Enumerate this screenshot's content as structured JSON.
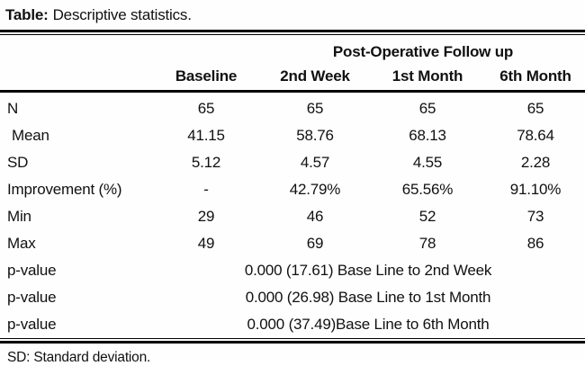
{
  "title": {
    "prefix": "Table:",
    "text": "Descriptive statistics."
  },
  "table": {
    "group_header": "Post-Operative Follow up",
    "columns": [
      "Baseline",
      "2nd Week",
      "1st Month",
      "6th Month"
    ],
    "rows": [
      {
        "label": "N",
        "values": [
          "65",
          "65",
          "65",
          "65"
        ]
      },
      {
        "label": "Mean",
        "values": [
          "41.15",
          "58.76",
          "68.13",
          "78.64"
        ]
      },
      {
        "label": "SD",
        "values": [
          "5.12",
          "4.57",
          "4.55",
          "2.28"
        ]
      },
      {
        "label": "Improvement (%)",
        "values": [
          "-",
          "42.79%",
          "65.56%",
          "91.10%"
        ]
      },
      {
        "label": "Min",
        "values": [
          "29",
          "46",
          "52",
          "73"
        ]
      },
      {
        "label": "Max",
        "values": [
          "49",
          "69",
          "78",
          "86"
        ]
      }
    ],
    "p_rows": [
      {
        "label": "p-value",
        "text": "0.000 (17.61) Base Line to 2nd Week"
      },
      {
        "label": "p-value",
        "text": "0.000 (26.98) Base Line to 1st Month"
      },
      {
        "label": "p-value",
        "text": "0.000 (37.49)Base Line to 6th Month"
      }
    ]
  },
  "footnote": "SD: Standard deviation."
}
